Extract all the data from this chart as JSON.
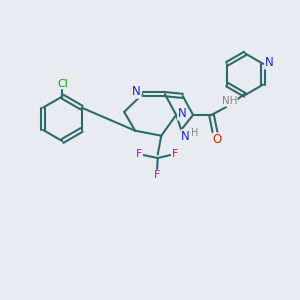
{
  "bg_color": "#e8ecf0",
  "bond_color": "#2d6b6b",
  "nitrogen_color": "#2222cc",
  "oxygen_color": "#cc2200",
  "fluorine_color": "#cc00bb",
  "chlorine_color": "#00aa00",
  "hydrogen_color": "#888888",
  "line_width": 1.5,
  "figsize": [
    3.0,
    3.0
  ],
  "dpi": 100,
  "xlim": [
    0,
    10
  ],
  "ylim": [
    0,
    10
  ]
}
